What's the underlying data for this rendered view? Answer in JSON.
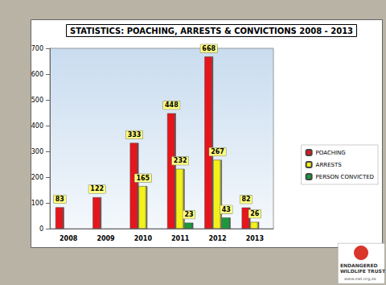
{
  "chart_data": {
    "type": "bar",
    "title": "STATISTICS: POACHING, ARRESTS & CONVICTIONS 2008 - 2013",
    "categories": [
      "2008",
      "2009",
      "2010",
      "2011",
      "2012",
      "2013"
    ],
    "series": [
      {
        "name": "POACHING",
        "color": "#e8141b",
        "values": [
          83,
          122,
          333,
          448,
          668,
          82
        ]
      },
      {
        "name": "ARRESTS",
        "color": "#f2f21a",
        "values": [
          null,
          null,
          165,
          232,
          267,
          26
        ]
      },
      {
        "name": "PERSON CONVICTED",
        "color": "#1a9a3a",
        "values": [
          null,
          null,
          null,
          23,
          43,
          null
        ]
      }
    ],
    "ylim": [
      0,
      700
    ],
    "yticks": [
      0,
      100,
      200,
      300,
      400,
      500,
      600,
      700
    ],
    "grid": false,
    "legend": "right",
    "data_labels": true,
    "annotations": [
      "ENDANGERED",
      "WILDLIFE TRUST",
      "www.ewt.org.za"
    ]
  }
}
